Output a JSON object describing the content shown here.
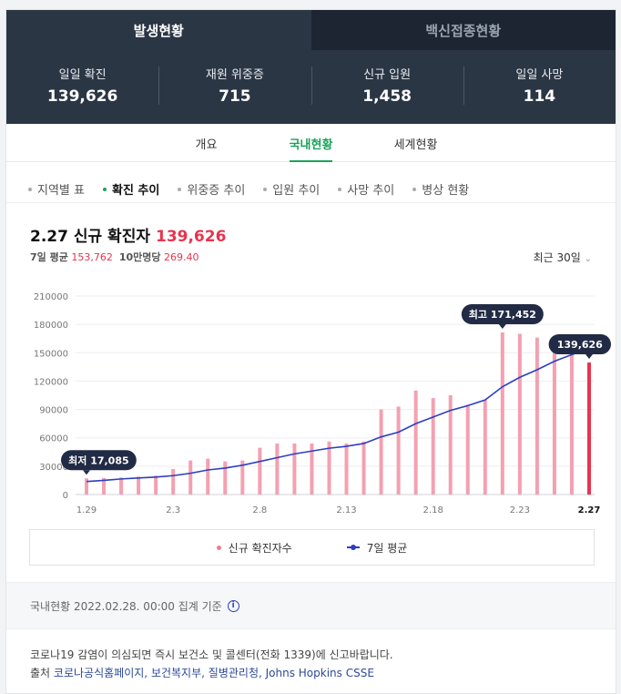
{
  "tabs": [
    {
      "label": "발생현황",
      "active": true
    },
    {
      "label": "백신접종현황",
      "active": false
    }
  ],
  "stats": [
    {
      "label": "일일 확진",
      "value": "139,626"
    },
    {
      "label": "재원 위중증",
      "value": "715"
    },
    {
      "label": "신규 입원",
      "value": "1,458"
    },
    {
      "label": "일일 사망",
      "value": "114"
    }
  ],
  "subtabs": [
    "개요",
    "국내현황",
    "세계현황"
  ],
  "chips": [
    "지역별 표",
    "확진 추이",
    "위중증 추이",
    "입원 추이",
    "사망 추이",
    "병상 현황"
  ],
  "headline": {
    "date": "2.27 신규 확진자",
    "value": "139,626"
  },
  "subline": {
    "avg_label": "7일 평균",
    "avg_value": "153,762",
    "per_label": "10만명당",
    "per_value": "269.40"
  },
  "range_label": "최근 30일",
  "chart_data": {
    "type": "bar",
    "categories": [
      "1.29",
      "1.30",
      "1.31",
      "2.1",
      "2.2",
      "2.3",
      "2.4",
      "2.5",
      "2.6",
      "2.7",
      "2.8",
      "2.9",
      "2.10",
      "2.11",
      "2.12",
      "2.13",
      "2.14",
      "2.15",
      "2.16",
      "2.17",
      "2.18",
      "2.19",
      "2.20",
      "2.21",
      "2.22",
      "2.23",
      "2.24",
      "2.25",
      "2.26",
      "2.27"
    ],
    "x_tick_labels": [
      "1.29",
      "2.3",
      "2.8",
      "2.13",
      "2.18",
      "2.23",
      "2.27"
    ],
    "y_ticks": [
      0,
      30000,
      60000,
      90000,
      120000,
      150000,
      180000,
      210000
    ],
    "ylim": [
      0,
      210000
    ],
    "series": [
      {
        "name": "신규 확진자수",
        "kind": "bar",
        "color": "#f4a0b1",
        "values": [
          17085,
          17500,
          18000,
          19000,
          20000,
          27000,
          36000,
          38000,
          35000,
          36000,
          49500,
          54000,
          54000,
          54000,
          56000,
          54000,
          56000,
          90000,
          93000,
          110000,
          102000,
          105000,
          95000,
          100000,
          171452,
          170000,
          166000,
          165000,
          164000,
          139626
        ]
      },
      {
        "name": "7일 평균",
        "kind": "line",
        "color": "#2c3fbf",
        "values": [
          13800,
          15000,
          16500,
          17500,
          18500,
          20000,
          22500,
          26000,
          28000,
          31000,
          35000,
          39000,
          43000,
          46000,
          49000,
          51000,
          54000,
          61000,
          66000,
          75000,
          82000,
          89000,
          94000,
          100000,
          114000,
          124000,
          132000,
          141000,
          148000,
          153762
        ]
      }
    ],
    "highlight_color": "#e8344e",
    "annotations": [
      {
        "text": "최저 17,085",
        "index": 0
      },
      {
        "text": "최고 171,452",
        "index": 24
      },
      {
        "text": "139,626",
        "index": 29
      }
    ]
  },
  "legend": [
    "신규 확진자수",
    "7일 평균"
  ],
  "footer": {
    "note": "국내현황 2022.02.28. 00:00 집계 기준",
    "notice": "코로나19 감염이 의심되면 즉시 보건소 및 콜센터(전화 1339)에 신고바랍니다.",
    "source_label": "출처",
    "sources": [
      "코로나공식홈페이지,",
      "보건복지부,",
      "질병관리청,",
      "Johns Hopkins CSSE"
    ]
  }
}
